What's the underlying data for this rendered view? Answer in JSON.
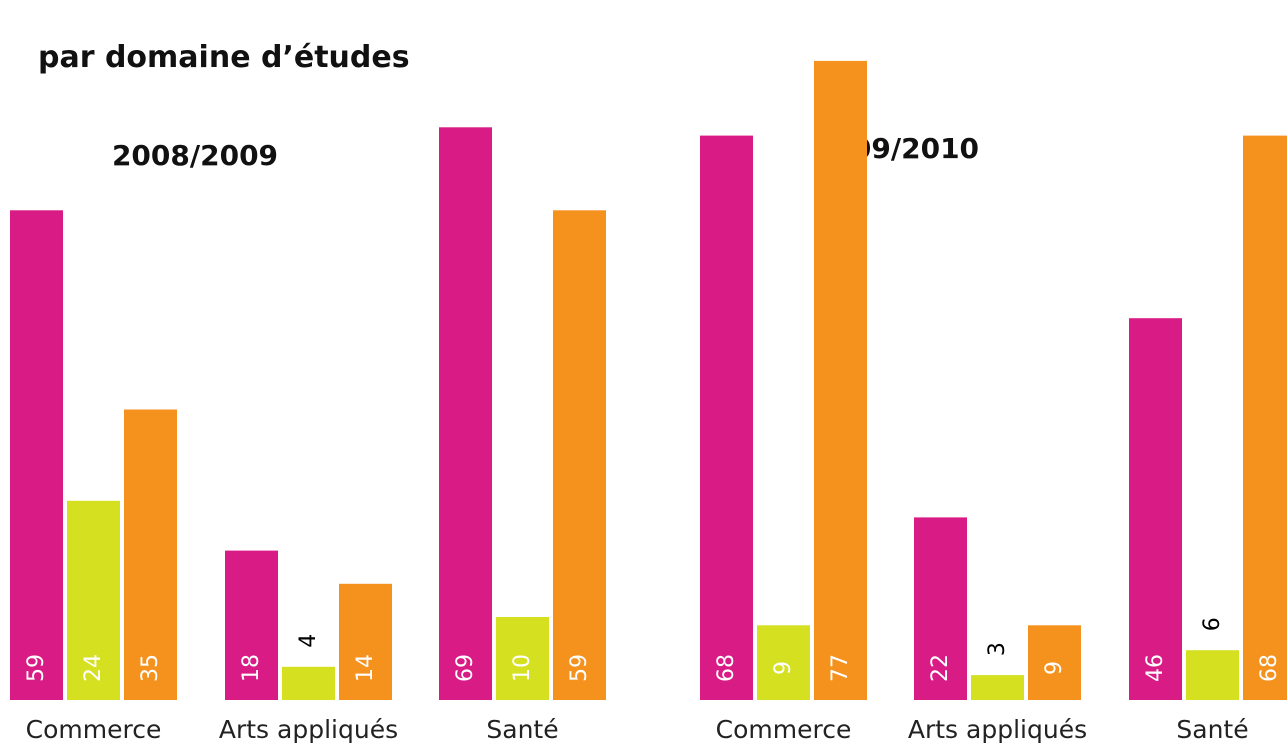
{
  "page_title": "par domaine d’études",
  "colors": {
    "series_1": "#D81B85",
    "series_2": "#D5E021",
    "series_3": "#F5921E",
    "label_inside": "#ffffff",
    "label_outside": "#000000"
  },
  "chart_data": [
    {
      "type": "bar",
      "title": "2008/2009",
      "categories": [
        "Commerce",
        "Arts appliqués",
        "Santé"
      ],
      "series": [
        {
          "values": [
            59,
            18,
            69
          ]
        },
        {
          "values": [
            24,
            4,
            10
          ]
        },
        {
          "values": [
            35,
            14,
            59
          ]
        }
      ],
      "ylim": [
        0,
        80
      ],
      "grid": false,
      "legend": false
    },
    {
      "type": "bar",
      "title": "2009/2010",
      "categories": [
        "Commerce",
        "Arts appliqués",
        "Santé"
      ],
      "series": [
        {
          "values": [
            68,
            22,
            46
          ]
        },
        {
          "values": [
            9,
            3,
            6
          ]
        },
        {
          "values": [
            77,
            9,
            68
          ]
        }
      ],
      "ylim": [
        0,
        80
      ],
      "grid": false,
      "legend": false
    }
  ]
}
